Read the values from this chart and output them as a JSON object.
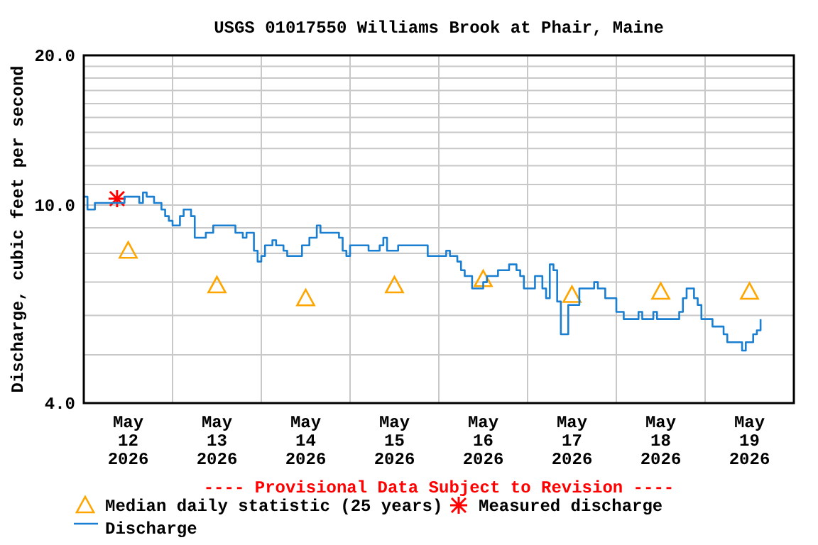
{
  "chart_data": {
    "type": "step",
    "title": "USGS 01017550 Williams Brook at Phair, Maine",
    "ylabel": "Discharge, cubic feet per second",
    "annotations": [
      "---- Provisional Data Subject to Revision ----"
    ],
    "log": "y",
    "grid": true,
    "legend": "bottom",
    "xlim": [
      "2026-05-12T00:00",
      "2026-05-20T00:00"
    ],
    "xticks": [
      {
        "value": "2026-05-12T12:00",
        "label": "May 12 2026"
      },
      {
        "value": "2026-05-13T00:00",
        "label": null
      },
      {
        "value": "2026-05-13T12:00",
        "label": "May 13 2026"
      },
      {
        "value": "2026-05-14T00:00",
        "label": null
      },
      {
        "value": "2026-05-14T12:00",
        "label": "May 14 2026"
      },
      {
        "value": "2026-05-15T00:00",
        "label": null
      },
      {
        "value": "2026-05-15T12:00",
        "label": "May 15 2026"
      },
      {
        "value": "2026-05-16T00:00",
        "label": null
      },
      {
        "value": "2026-05-16T12:00",
        "label": "May 16 2026"
      },
      {
        "value": "2026-05-17T00:00",
        "label": null
      },
      {
        "value": "2026-05-17T12:00",
        "label": "May 17 2026"
      },
      {
        "value": "2026-05-18T00:00",
        "label": null
      },
      {
        "value": "2026-05-18T12:00",
        "label": "May 18 2026"
      },
      {
        "value": "2026-05-19T00:00",
        "label": null
      },
      {
        "value": "2026-05-19T12:00",
        "label": "May 19 2026"
      }
    ],
    "ylim": [
      4,
      20
    ],
    "yticks": [
      {
        "value": 4,
        "label": "4.0"
      },
      {
        "value": 5,
        "label": null
      },
      {
        "value": 6,
        "label": null
      },
      {
        "value": 7,
        "label": null
      },
      {
        "value": 8,
        "label": null
      },
      {
        "value": 9,
        "label": null
      },
      {
        "value": 10,
        "label": "10.0"
      },
      {
        "value": 11,
        "label": null
      },
      {
        "value": 12,
        "label": null
      },
      {
        "value": 13,
        "label": null
      },
      {
        "value": 14,
        "label": null
      },
      {
        "value": 15,
        "label": null
      },
      {
        "value": 16,
        "label": null
      },
      {
        "value": 17,
        "label": null
      },
      {
        "value": 18,
        "label": null
      },
      {
        "value": 19,
        "label": null
      },
      {
        "value": 20,
        "label": "20.0"
      }
    ],
    "series": [
      {
        "name": "Median daily statistic (25 years)",
        "type": "scatter",
        "marker": "triangle",
        "color": "#ffa500",
        "x": [
          "2026-05-12T12:00",
          "2026-05-13T12:00",
          "2026-05-14T12:00",
          "2026-05-15T12:00",
          "2026-05-16T12:00",
          "2026-05-17T12:00",
          "2026-05-18T12:00",
          "2026-05-19T12:00"
        ],
        "values": [
          8.1,
          6.9,
          6.5,
          6.9,
          7.1,
          6.6,
          6.7,
          6.7
        ]
      },
      {
        "name": "Measured discharge",
        "type": "scatter",
        "marker": "cross",
        "color": "#ff0000",
        "x": [
          "2026-05-12T09:00"
        ],
        "values": [
          10.3
        ]
      },
      {
        "name": "Discharge",
        "color": "#1a7fd1",
        "x": [
          "2026-05-12T00:00",
          "2026-05-12T01:00",
          "2026-05-12T03:00",
          "2026-05-12T11:00",
          "2026-05-12T15:00",
          "2026-05-12T16:00",
          "2026-05-12T17:00",
          "2026-05-12T19:00",
          "2026-05-12T21:00",
          "2026-05-12T22:00",
          "2026-05-12T23:00",
          "2026-05-13T00:00",
          "2026-05-13T02:00",
          "2026-05-13T03:00",
          "2026-05-13T05:00",
          "2026-05-13T06:00",
          "2026-05-13T09:00",
          "2026-05-13T11:00",
          "2026-05-13T17:00",
          "2026-05-13T19:00",
          "2026-05-13T20:00",
          "2026-05-13T22:00",
          "2026-05-13T23:00",
          "2026-05-14T00:00",
          "2026-05-14T01:00",
          "2026-05-14T03:00",
          "2026-05-14T04:00",
          "2026-05-14T06:00",
          "2026-05-14T07:00",
          "2026-05-14T11:00",
          "2026-05-14T13:00",
          "2026-05-14T15:00",
          "2026-05-14T16:00",
          "2026-05-14T21:00",
          "2026-05-14T22:00",
          "2026-05-14T23:00",
          "2026-05-15T00:00",
          "2026-05-15T05:00",
          "2026-05-15T08:00",
          "2026-05-15T09:00",
          "2026-05-15T10:00",
          "2026-05-15T13:00",
          "2026-05-15T21:00",
          "2026-05-16T02:00",
          "2026-05-16T03:00",
          "2026-05-16T05:00",
          "2026-05-16T06:00",
          "2026-05-16T07:00",
          "2026-05-16T09:00",
          "2026-05-16T12:00",
          "2026-05-16T13:00",
          "2026-05-16T16:00",
          "2026-05-16T19:00",
          "2026-05-16T21:00",
          "2026-05-16T22:00",
          "2026-05-16T23:00",
          "2026-05-17T02:00",
          "2026-05-17T04:00",
          "2026-05-17T05:00",
          "2026-05-17T06:00",
          "2026-05-17T07:00",
          "2026-05-17T08:00",
          "2026-05-17T09:00",
          "2026-05-17T11:00",
          "2026-05-17T14:00",
          "2026-05-17T18:00",
          "2026-05-17T19:00",
          "2026-05-17T21:00",
          "2026-05-18T00:00",
          "2026-05-18T02:00",
          "2026-05-18T06:00",
          "2026-05-18T07:00",
          "2026-05-18T10:00",
          "2026-05-18T11:00",
          "2026-05-18T17:00",
          "2026-05-18T18:00",
          "2026-05-18T19:00",
          "2026-05-18T21:00",
          "2026-05-18T22:00",
          "2026-05-18T23:00",
          "2026-05-19T02:00",
          "2026-05-19T05:00",
          "2026-05-19T06:00",
          "2026-05-19T10:00",
          "2026-05-19T11:00",
          "2026-05-19T13:00",
          "2026-05-19T14:00",
          "2026-05-19T15:00"
        ],
        "values": [
          10.4,
          9.8,
          10.1,
          10.4,
          10.1,
          10.6,
          10.4,
          10.1,
          9.8,
          9.5,
          9.3,
          9.1,
          9.5,
          9.8,
          9.5,
          8.6,
          8.8,
          9.1,
          8.8,
          8.6,
          8.8,
          8.1,
          7.7,
          7.9,
          8.3,
          8.5,
          8.3,
          8.1,
          7.9,
          8.3,
          8.6,
          9.1,
          8.8,
          8.6,
          8.1,
          7.9,
          8.3,
          8.1,
          8.3,
          8.6,
          8.1,
          8.3,
          7.9,
          8.1,
          7.9,
          7.7,
          7.4,
          7.2,
          6.8,
          7.0,
          7.2,
          7.4,
          7.6,
          7.4,
          7.2,
          6.8,
          7.2,
          6.8,
          6.5,
          7.6,
          7.4,
          6.4,
          5.5,
          6.3,
          6.8,
          7.0,
          6.8,
          6.5,
          6.1,
          5.9,
          6.1,
          5.9,
          6.1,
          5.9,
          6.1,
          6.5,
          6.8,
          6.5,
          6.3,
          5.9,
          5.7,
          5.5,
          5.3,
          5.1,
          5.3,
          5.5,
          5.6,
          5.9
        ]
      }
    ]
  }
}
